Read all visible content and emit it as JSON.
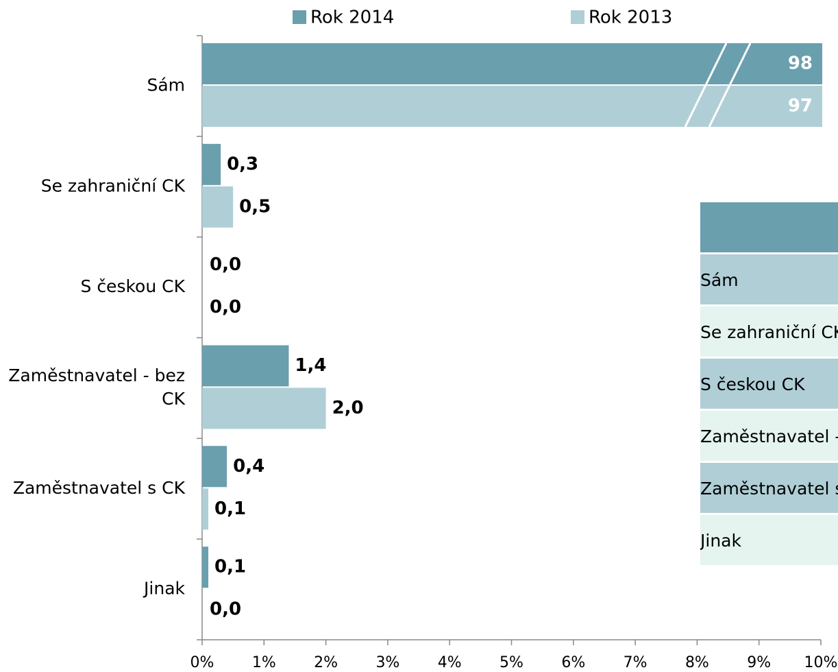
{
  "chart_data": {
    "type": "barh",
    "categories": [
      "Sám",
      "Se zahraniční CK",
      "S českou CK",
      "Zaměstnavatel - bez CK",
      "Zaměstnavatel s CK",
      "Jinak"
    ],
    "series": [
      {
        "name": "Rok 2014",
        "color": "#6a9fad",
        "values": [
          98,
          0.3,
          0,
          1.4,
          0.4,
          0.1
        ],
        "value_labels": [
          "98",
          "0,3",
          "0,0",
          "1,4",
          "0,4",
          "0,1"
        ]
      },
      {
        "name": "Rok 2013",
        "color": "#b0ced6",
        "values": [
          97,
          0.5,
          0,
          2.0,
          0.1,
          0.0
        ],
        "value_labels": [
          "97",
          "0,5",
          "0,0",
          "2,0",
          "0,1",
          "0,0"
        ]
      }
    ],
    "xlim": [
      0,
      10
    ],
    "xticks": [
      {
        "value": 0,
        "label": "0%"
      },
      {
        "value": 1,
        "label": "1%"
      },
      {
        "value": 2,
        "label": "2%"
      },
      {
        "value": 3,
        "label": "3%"
      },
      {
        "value": 4,
        "label": "4%"
      },
      {
        "value": 5,
        "label": "5%"
      },
      {
        "value": 6,
        "label": "6%"
      },
      {
        "value": 7,
        "label": "7%"
      },
      {
        "value": 8,
        "label": "8%"
      },
      {
        "value": 9,
        "label": "9%"
      },
      {
        "value": 10,
        "label": "10%"
      }
    ],
    "legend": "top"
  }
}
